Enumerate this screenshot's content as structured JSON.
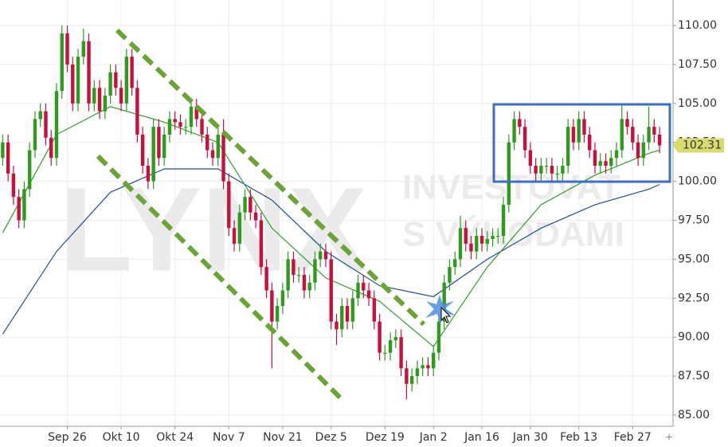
{
  "chart_data": {
    "type": "candlestick",
    "watermark": {
      "logo": "LYNX",
      "line1": "INVESTOVAT",
      "line2": "S VÝHODAMI"
    },
    "ohlc": {
      "up_color": "#2e9a1e",
      "down_color": "#c8103c",
      "open": [
        101.5,
        102.5,
        100.5,
        99,
        97.5,
        99.5,
        102,
        104,
        104.5,
        102.8,
        101.5,
        105.8,
        109.5,
        107.5,
        105,
        108,
        109,
        105,
        106,
        104.5,
        105.5,
        107,
        106,
        105,
        108,
        106,
        103,
        101,
        100,
        103.5,
        101.5,
        103,
        104,
        103.8,
        103.5,
        103.5,
        104.8,
        104,
        103,
        102,
        101.5,
        103,
        100,
        97,
        96,
        98,
        99,
        98,
        97.5,
        94.5,
        93,
        91,
        92,
        93,
        95,
        94,
        94,
        93,
        93.5,
        95,
        95.5,
        95,
        91,
        90.5,
        92,
        91,
        92.5,
        93.5,
        93,
        92.5,
        91,
        89,
        89,
        89.8,
        90,
        88,
        87,
        87.5,
        88,
        88.2,
        88,
        89,
        91,
        93.5,
        94.5,
        95,
        97,
        96,
        95.5,
        96.5,
        96,
        96.3,
        96.5,
        96.5,
        98.5,
        102.5,
        104,
        103.5,
        102,
        101,
        100.5,
        101,
        101,
        100.5,
        100.5,
        101,
        103.5,
        102.5,
        104,
        103,
        102,
        101,
        101.3,
        101,
        101.5,
        102,
        104,
        103.5,
        102.5,
        101.5,
        102.5,
        103.5,
        103
      ],
      "high": [
        103,
        103,
        101,
        99.5,
        100,
        102.5,
        104.5,
        105,
        105,
        103.3,
        106.3,
        110,
        110,
        108,
        108.5,
        109.8,
        109.5,
        106.5,
        106.5,
        106,
        107.5,
        107.5,
        106.5,
        108.5,
        108.5,
        106.5,
        103.5,
        101.5,
        104,
        104,
        103.5,
        104.5,
        104.5,
        104.3,
        104,
        105.3,
        105.3,
        104.5,
        103.5,
        102.5,
        103.5,
        104,
        100.5,
        97.5,
        98.5,
        99.5,
        99.5,
        98.5,
        98,
        95,
        93.5,
        92.5,
        93.5,
        95.5,
        95.5,
        94.5,
        94.5,
        94,
        95.5,
        96,
        96,
        95.5,
        91.5,
        92.5,
        92.5,
        93,
        94,
        94,
        93.5,
        93,
        91.5,
        89.5,
        90.3,
        90.5,
        90.5,
        88.5,
        88,
        88.5,
        88.7,
        88.7,
        89.5,
        91.5,
        94,
        95,
        95.5,
        97.8,
        97.5,
        96.5,
        97,
        97,
        96.8,
        97,
        97,
        99,
        103,
        104.5,
        104.5,
        104,
        102.5,
        101.5,
        101.5,
        101.5,
        101.5,
        101,
        101.5,
        104,
        104,
        104.5,
        104.5,
        103.5,
        102.5,
        101.8,
        101.8,
        102,
        102.5,
        105,
        104.5,
        104,
        103,
        103,
        104.8,
        104,
        103.5
      ],
      "low": [
        101,
        100,
        98.5,
        97,
        97,
        99,
        101.5,
        103.5,
        102.3,
        101,
        101,
        105.3,
        107,
        104.5,
        104.5,
        107.5,
        104.5,
        104.5,
        104,
        104,
        105,
        105.5,
        104.5,
        104.5,
        105.5,
        102.5,
        100.5,
        99.5,
        99.5,
        101,
        101,
        102.5,
        103.3,
        103,
        103,
        103,
        103.5,
        102.5,
        101.5,
        101,
        101,
        99.5,
        96.5,
        95.5,
        95.5,
        97.5,
        97.5,
        97,
        94,
        92.5,
        88,
        90.5,
        91.5,
        92.5,
        93.5,
        93.5,
        92.5,
        92.5,
        93,
        94.5,
        94.5,
        90.5,
        89.5,
        90,
        90.5,
        90.5,
        92,
        92.5,
        92,
        90.5,
        88.5,
        88.5,
        88.5,
        89.3,
        87.5,
        86,
        86.5,
        87,
        87.5,
        87.5,
        87.5,
        88.5,
        90.5,
        93,
        94,
        94.5,
        95.5,
        95,
        95,
        95.5,
        95.5,
        95.8,
        96,
        96,
        98,
        102,
        103,
        101.5,
        100.5,
        100,
        100,
        100.5,
        100,
        100,
        100,
        100.5,
        102,
        102,
        102.5,
        101.5,
        100.5,
        100.5,
        100.5,
        100.5,
        101,
        101.5,
        103,
        102,
        101,
        101,
        102,
        102.5,
        101.8
      ],
      "close": [
        102.5,
        100.5,
        99,
        97.5,
        99.5,
        102,
        104,
        104.5,
        102.8,
        101.5,
        105.8,
        109.5,
        107.5,
        105,
        108,
        109,
        105,
        106,
        104.5,
        105.5,
        107,
        106,
        105,
        108,
        106,
        103,
        101,
        100,
        103.5,
        101.5,
        103,
        104,
        103.8,
        103.5,
        103.5,
        104.8,
        104,
        103,
        102,
        101.5,
        103,
        100,
        97,
        96,
        98,
        99,
        98,
        97.5,
        94.5,
        93,
        91,
        92,
        93,
        95,
        94,
        94,
        93,
        93.5,
        95,
        95.5,
        95,
        91,
        90.5,
        92,
        91,
        92.5,
        93.5,
        93,
        92.5,
        91,
        89,
        89,
        89.8,
        90,
        88,
        87,
        87.5,
        88,
        88.2,
        88,
        89,
        91,
        93.5,
        94.5,
        95,
        97,
        96,
        95.5,
        96.5,
        96,
        96.3,
        96.5,
        96.5,
        98.5,
        102.5,
        104,
        103.5,
        102,
        101,
        100.5,
        101,
        101,
        100.5,
        100.5,
        101,
        103.5,
        102.5,
        104,
        103,
        102,
        101,
        101.3,
        101,
        101.5,
        102,
        104,
        103.5,
        102.5,
        101.5,
        102.5,
        103.5,
        103,
        102.31
      ]
    },
    "lines": [
      {
        "color": "#2ca02c",
        "x": [
          0,
          10,
          20,
          30,
          40,
          50,
          60,
          70,
          80,
          90,
          100,
          110,
          120,
          122
        ],
        "values": [
          96.7,
          103,
          104.8,
          103.8,
          102.5,
          97,
          93.8,
          92.3,
          89.4,
          94.5,
          98.5,
          100.4,
          101.8,
          102
        ]
      },
      {
        "color": "#1f4e9c",
        "x": [
          0,
          10,
          20,
          30,
          40,
          50,
          60,
          70,
          80,
          90,
          100,
          110,
          120,
          122
        ],
        "values": [
          90.2,
          95.5,
          99.3,
          100.8,
          100.8,
          98.8,
          95.5,
          93.3,
          92.6,
          95,
          97,
          98.5,
          99.5,
          99.8
        ]
      }
    ],
    "last_price": {
      "value": 102.31,
      "label": "102.31"
    },
    "xlim": [
      -0.5,
      124.5
    ],
    "xticks": [
      {
        "value": 12,
        "label": "Sep 26"
      },
      {
        "value": 22,
        "label": "Okt 10"
      },
      {
        "value": 32,
        "label": "Okt 24"
      },
      {
        "value": 42,
        "label": "Nov 7"
      },
      {
        "value": 52,
        "label": "Nov 21"
      },
      {
        "value": 61,
        "label": "Dez 5"
      },
      {
        "value": 71,
        "label": "Dez 19"
      },
      {
        "value": 80,
        "label": "Jan 2"
      },
      {
        "value": 89,
        "label": "Jan 16"
      },
      {
        "value": 98,
        "label": "Jan 30"
      },
      {
        "value": 107,
        "label": "Feb 13"
      },
      {
        "value": 117,
        "label": "Feb 27"
      }
    ],
    "ylim": [
      84.28,
      111.64
    ],
    "yticks": [
      {
        "value": 85,
        "label": "85.00"
      },
      {
        "value": 87.5,
        "label": "87.50"
      },
      {
        "value": 90,
        "label": "90.00"
      },
      {
        "value": 92.5,
        "label": "92.50"
      },
      {
        "value": 95,
        "label": "95.00"
      },
      {
        "value": 97.5,
        "label": "97.50"
      },
      {
        "value": 100,
        "label": "100.00"
      },
      {
        "value": 102.5,
        "label": "102.50"
      },
      {
        "value": 105,
        "label": "105.00"
      },
      {
        "value": 107.5,
        "label": "107.50"
      },
      {
        "value": 110,
        "label": "110.00"
      }
    ],
    "grid": true
  }
}
